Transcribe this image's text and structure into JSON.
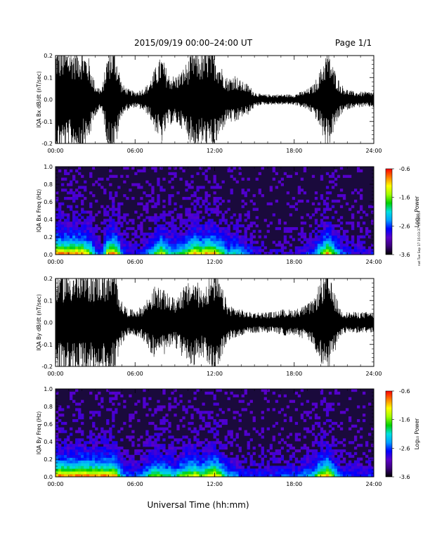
{
  "header": {
    "title": "2015/09/19   00:00–24:00 UT",
    "page": "Page 1/1"
  },
  "footer": {
    "xlabel": "Universal Time (hh:mm)",
    "side_note": "nat Tue Sep 17 15:03:37 CET 2019"
  },
  "colors": {
    "waveform": "#000000",
    "spectrogram_background": "#1a0a3c",
    "colorbar_stops": [
      "#000000",
      "#3a007a",
      "#5a00c8",
      "#0000ff",
      "#00a0ff",
      "#00e0e0",
      "#00d000",
      "#a0ff00",
      "#ffff00",
      "#ff8000",
      "#ff0000"
    ]
  },
  "chart_data": [
    {
      "type": "line",
      "ylabel": "IQA Bx dB/dt (nT/sec)",
      "xlim": [
        0,
        24
      ],
      "ylim": [
        -0.2,
        0.2
      ],
      "x_ticks": [
        "00:00",
        "06:00",
        "12:00",
        "18:00",
        "24:00"
      ],
      "y_ticks": [
        "-0.2",
        "-0.1",
        "0.0",
        "0.1",
        "0.2"
      ],
      "series": [
        {
          "envelope_hours": [
            0.0,
            0.5,
            1.0,
            1.5,
            2.0,
            2.5,
            3.0,
            3.5,
            4.0,
            4.5,
            5.0,
            5.5,
            6.0,
            6.5,
            7.0,
            7.5,
            8.0,
            8.5,
            9.0,
            9.5,
            10.0,
            10.5,
            11.0,
            11.5,
            12.0,
            12.5,
            13.0,
            13.5,
            14.0,
            14.5,
            15.0,
            15.5,
            16.0,
            16.5,
            17.0,
            17.5,
            18.0,
            18.5,
            19.0,
            19.5,
            20.0,
            20.5,
            21.0,
            21.5,
            22.0,
            22.5,
            23.0,
            23.5,
            24.0
          ],
          "amplitude": [
            0.2,
            0.2,
            0.2,
            0.2,
            0.2,
            0.16,
            0.06,
            0.04,
            0.2,
            0.2,
            0.06,
            0.04,
            0.03,
            0.04,
            0.06,
            0.12,
            0.17,
            0.1,
            0.09,
            0.11,
            0.15,
            0.2,
            0.17,
            0.2,
            0.19,
            0.13,
            0.08,
            0.1,
            0.07,
            0.06,
            0.03,
            0.02,
            0.02,
            0.02,
            0.02,
            0.02,
            0.02,
            0.03,
            0.04,
            0.06,
            0.12,
            0.2,
            0.12,
            0.06,
            0.04,
            0.03,
            0.03,
            0.03,
            0.03
          ]
        }
      ]
    },
    {
      "type": "heatmap",
      "ylabel": "IQA Bx Freq (Hz)",
      "xlim": [
        0,
        24
      ],
      "ylim": [
        0.0,
        1.0
      ],
      "x_ticks": [
        "00:00",
        "06:00",
        "12:00",
        "18:00",
        "24:00"
      ],
      "y_ticks": [
        "0.0",
        "0.2",
        "0.4",
        "0.6",
        "0.8",
        "1.0"
      ],
      "colorbar": {
        "label": "Log₁₀ Power",
        "range": [
          -3.6,
          -0.6
        ],
        "ticks": [
          "-0.6",
          "-1.6",
          "-2.6",
          "-3.6"
        ]
      }
    },
    {
      "type": "line",
      "ylabel": "IQA By dB/dt (nT/sec)",
      "xlim": [
        0,
        24
      ],
      "ylim": [
        -0.2,
        0.2
      ],
      "x_ticks": [
        "00:00",
        "06:00",
        "12:00",
        "18:00",
        "24:00"
      ],
      "y_ticks": [
        "-0.2",
        "-0.1",
        "0.0",
        "0.1",
        "0.2"
      ],
      "series": [
        {
          "envelope_hours": [
            0.0,
            0.5,
            1.0,
            1.5,
            2.0,
            2.5,
            3.0,
            3.5,
            4.0,
            4.5,
            5.0,
            5.5,
            6.0,
            6.5,
            7.0,
            7.5,
            8.0,
            8.5,
            9.0,
            9.5,
            10.0,
            10.5,
            11.0,
            11.5,
            12.0,
            12.5,
            13.0,
            13.5,
            14.0,
            14.5,
            15.0,
            15.5,
            16.0,
            16.5,
            17.0,
            17.5,
            18.0,
            18.5,
            19.0,
            19.5,
            20.0,
            20.5,
            21.0,
            21.5,
            22.0,
            22.5,
            23.0,
            23.5,
            24.0
          ],
          "amplitude": [
            0.2,
            0.2,
            0.2,
            0.2,
            0.2,
            0.2,
            0.2,
            0.2,
            0.2,
            0.2,
            0.08,
            0.05,
            0.05,
            0.06,
            0.1,
            0.14,
            0.13,
            0.11,
            0.09,
            0.13,
            0.15,
            0.17,
            0.13,
            0.17,
            0.2,
            0.14,
            0.07,
            0.06,
            0.05,
            0.04,
            0.04,
            0.04,
            0.04,
            0.04,
            0.05,
            0.05,
            0.05,
            0.06,
            0.07,
            0.09,
            0.17,
            0.2,
            0.12,
            0.05,
            0.04,
            0.04,
            0.04,
            0.04,
            0.04
          ]
        }
      ]
    },
    {
      "type": "heatmap",
      "ylabel": "IQA By Freq (Hz)",
      "xlim": [
        0,
        24
      ],
      "ylim": [
        0.0,
        1.0
      ],
      "x_ticks": [
        "00:00",
        "06:00",
        "12:00",
        "18:00",
        "24:00"
      ],
      "y_ticks": [
        "0.0",
        "0.2",
        "0.4",
        "0.6",
        "0.8",
        "1.0"
      ],
      "colorbar": {
        "label": "Log₁₀ Power",
        "range": [
          -3.6,
          -0.6
        ],
        "ticks": [
          "-0.6",
          "-1.6",
          "-2.6",
          "-3.6"
        ]
      }
    }
  ]
}
